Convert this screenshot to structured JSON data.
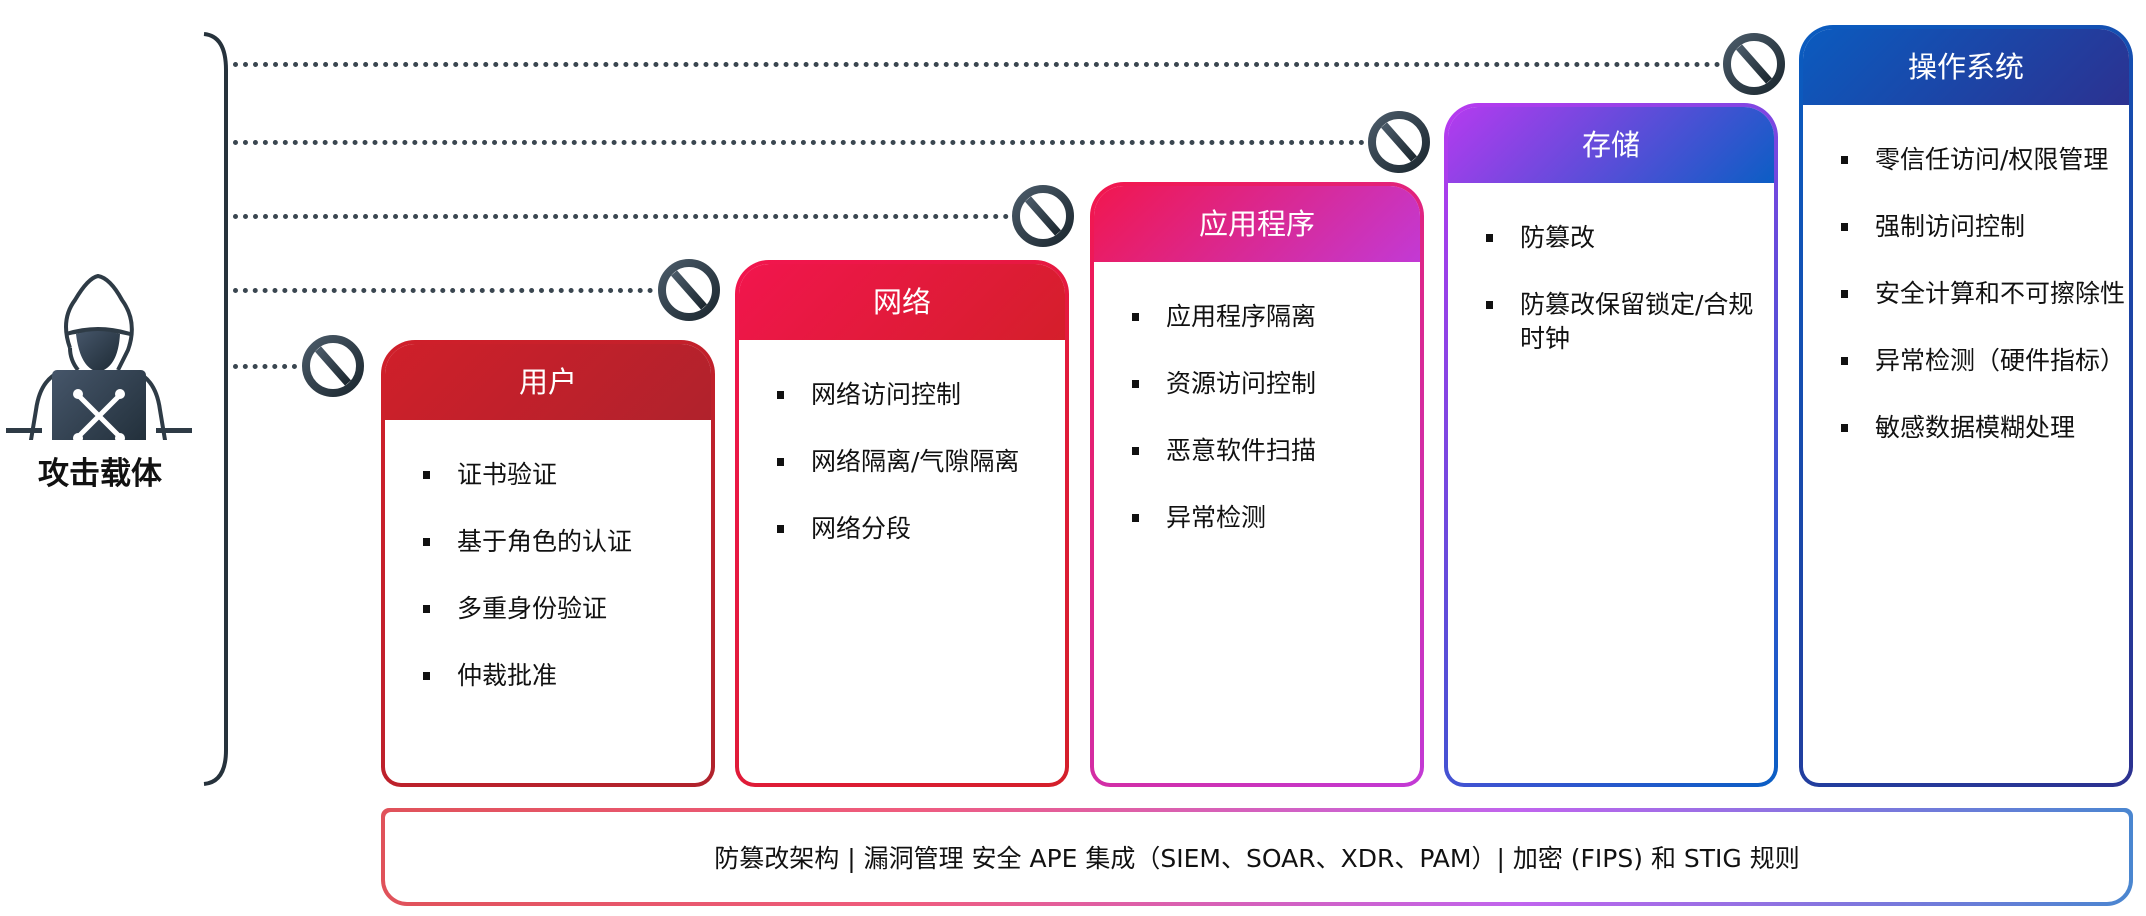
{
  "attacker": {
    "label": "攻击载体",
    "icon": "hacker-icon"
  },
  "cards": [
    {
      "title": "用户",
      "items": [
        "证书验证",
        "基于角色的认证",
        "多重身份验证",
        "仲裁批准"
      ],
      "colors": [
        "#d01f2a",
        "#b0222c"
      ]
    },
    {
      "title": "网络",
      "items": [
        "网络访问控制",
        "网络隔离/气隙隔离",
        "网络分段"
      ],
      "colors": [
        "#f2154e",
        "#d41f2a"
      ]
    },
    {
      "title": "应用程序",
      "items": [
        "应用程序隔离",
        "资源访问控制",
        "恶意软件扫描",
        "异常检测"
      ],
      "colors": [
        "#f2164c",
        "#c23ad6"
      ]
    },
    {
      "title": "存储",
      "items": [
        "防篡改",
        "防篡改保留锁定/合规时钟"
      ],
      "colors": [
        "#b83af0",
        "#0a5ec4"
      ]
    },
    {
      "title": "操作系统",
      "items": [
        "零信任访问/权限管理",
        "强制访问控制",
        "安全计算和不可擦除性",
        "异常检测（硬件指标）",
        "敏感数据模糊处理"
      ],
      "colors": [
        "#0a5cc0",
        "#2c3190"
      ]
    }
  ],
  "bottom_bar": {
    "text": "防篡改架构 | 漏洞管理 安全 APE 集成（SIEM、SOAR、XDR、PAM）| 加密 (FIPS) 和 STIG 规则"
  },
  "block_icon": "prohibited-icon"
}
